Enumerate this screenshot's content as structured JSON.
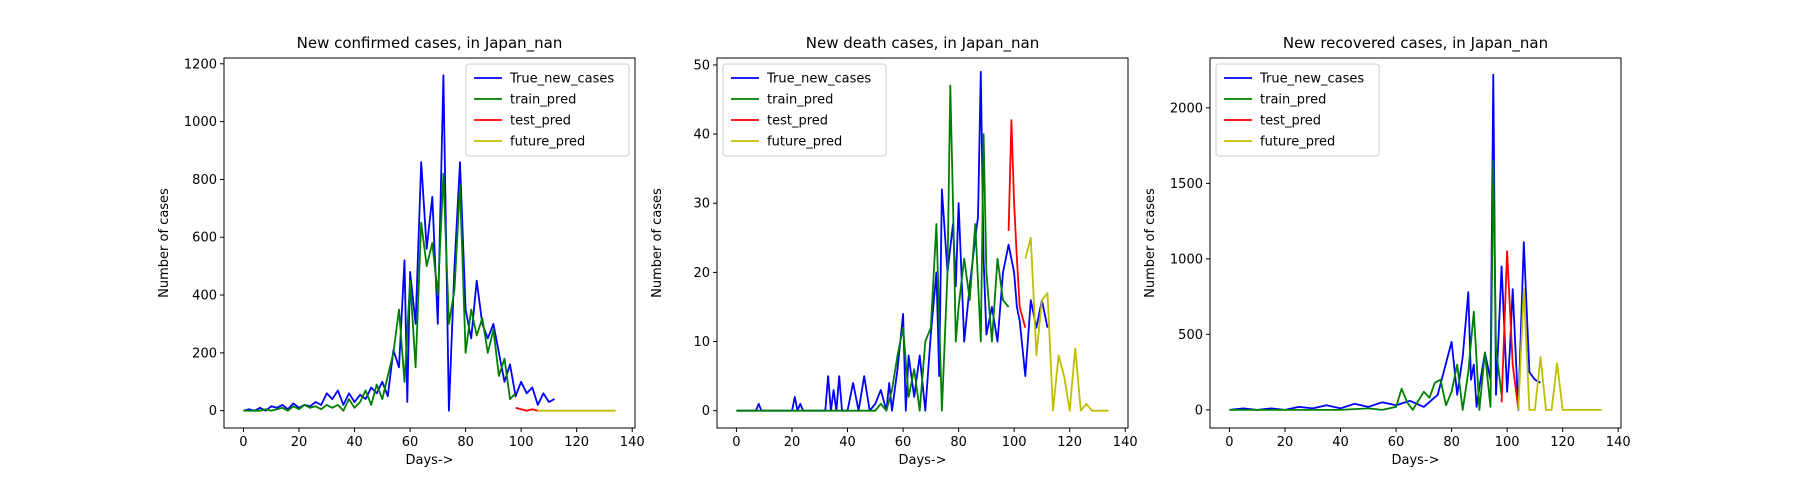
{
  "colors": {
    "True_new_cases": "#0000ff",
    "train_pred": "#008000",
    "test_pred": "#ff0000",
    "future_pred": "#bfbf00"
  },
  "chart_data": [
    {
      "type": "line",
      "title": "New confirmed cases, in Japan_nan",
      "xlabel": "Days->",
      "ylabel": "Number of cases",
      "xlim": [
        -7,
        141
      ],
      "ylim": [
        -60,
        1220
      ],
      "xticks": [
        0,
        20,
        40,
        60,
        80,
        100,
        120,
        140
      ],
      "yticks": [
        0,
        200,
        400,
        600,
        800,
        1000,
        1200
      ],
      "legend": "top-right",
      "grid": false,
      "series": [
        {
          "name": "True_new_cases",
          "x": [
            0,
            2,
            4,
            6,
            8,
            10,
            12,
            14,
            16,
            18,
            20,
            22,
            24,
            26,
            28,
            30,
            32,
            34,
            36,
            38,
            40,
            42,
            44,
            46,
            48,
            50,
            52,
            54,
            56,
            58,
            59,
            60,
            62,
            64,
            66,
            68,
            70,
            72,
            74,
            76,
            78,
            80,
            82,
            84,
            86,
            88,
            90,
            92,
            94,
            96,
            98,
            100,
            102,
            104,
            106,
            108,
            110,
            112
          ],
          "y": [
            0,
            5,
            0,
            10,
            0,
            15,
            10,
            20,
            5,
            25,
            10,
            20,
            15,
            30,
            20,
            60,
            40,
            70,
            20,
            60,
            30,
            55,
            40,
            80,
            60,
            100,
            50,
            210,
            150,
            520,
            30,
            480,
            300,
            860,
            560,
            740,
            300,
            1160,
            0,
            500,
            860,
            350,
            250,
            450,
            300,
            250,
            300,
            200,
            100,
            160,
            50,
            100,
            60,
            80,
            20,
            60,
            30,
            40
          ]
        },
        {
          "name": "train_pred",
          "x": [
            0,
            2,
            4,
            6,
            8,
            10,
            12,
            14,
            16,
            18,
            20,
            22,
            24,
            26,
            28,
            30,
            32,
            34,
            36,
            38,
            40,
            42,
            44,
            46,
            48,
            50,
            52,
            54,
            56,
            58,
            60,
            62,
            64,
            66,
            68,
            70,
            72,
            74,
            76,
            78,
            80,
            82,
            84,
            86,
            88,
            90,
            92,
            94,
            96,
            98
          ],
          "y": [
            0,
            0,
            0,
            0,
            5,
            0,
            5,
            10,
            0,
            15,
            5,
            20,
            10,
            15,
            5,
            20,
            10,
            20,
            0,
            40,
            10,
            30,
            70,
            20,
            90,
            40,
            120,
            200,
            350,
            100,
            450,
            150,
            650,
            500,
            580,
            400,
            820,
            300,
            420,
            780,
            200,
            350,
            260,
            320,
            200,
            280,
            120,
            180,
            40,
            60
          ]
        },
        {
          "name": "test_pred",
          "x": [
            98,
            100,
            102,
            104,
            106
          ],
          "y": [
            10,
            5,
            0,
            5,
            0
          ]
        },
        {
          "name": "future_pred",
          "x": [
            106,
            110,
            115,
            120,
            125,
            130,
            134
          ],
          "y": [
            0,
            0,
            0,
            0,
            0,
            0,
            0
          ]
        }
      ]
    },
    {
      "type": "line",
      "title": "New death cases, in Japan_nan",
      "xlabel": "Days->",
      "ylabel": "Number of cases",
      "xlim": [
        -7,
        141
      ],
      "ylim": [
        -2.5,
        51
      ],
      "xticks": [
        0,
        20,
        40,
        60,
        80,
        100,
        120,
        140
      ],
      "yticks": [
        0,
        10,
        20,
        30,
        40,
        50
      ],
      "legend": "top-left",
      "grid": false,
      "series": [
        {
          "name": "True_new_cases",
          "x": [
            0,
            5,
            7,
            8,
            9,
            15,
            20,
            21,
            22,
            23,
            24,
            30,
            32,
            33,
            34,
            35,
            36,
            37,
            38,
            40,
            42,
            44,
            46,
            48,
            50,
            52,
            54,
            55,
            56,
            58,
            60,
            61,
            62,
            64,
            66,
            68,
            70,
            72,
            73,
            74,
            76,
            78,
            79,
            80,
            82,
            84,
            86,
            87,
            88,
            89,
            90,
            92,
            94,
            96,
            98,
            100,
            101,
            102,
            104,
            106,
            108,
            110,
            112
          ],
          "y": [
            0,
            0,
            0,
            1,
            0,
            0,
            0,
            2,
            0,
            1,
            0,
            0,
            0,
            5,
            0,
            3,
            0,
            5,
            0,
            0,
            4,
            0,
            5,
            0,
            1,
            3,
            0,
            4,
            0,
            6,
            14,
            0,
            8,
            2,
            8,
            0,
            11,
            20,
            5,
            32,
            20,
            27,
            18,
            30,
            10,
            18,
            25,
            28,
            49,
            22,
            11,
            15,
            10,
            20,
            24,
            20,
            15,
            13,
            5,
            16,
            12,
            16,
            12
          ]
        },
        {
          "name": "train_pred",
          "x": [
            0,
            20,
            40,
            50,
            52,
            54,
            56,
            58,
            60,
            62,
            64,
            66,
            68,
            70,
            72,
            74,
            76,
            77,
            78,
            79,
            80,
            82,
            84,
            86,
            88,
            89,
            90,
            92,
            94,
            96,
            98
          ],
          "y": [
            0,
            0,
            0,
            0,
            1,
            0,
            3,
            8,
            12,
            2,
            6,
            0,
            10,
            12,
            27,
            0,
            20,
            47,
            30,
            10,
            15,
            22,
            16,
            27,
            10,
            40,
            20,
            10,
            22,
            16,
            15
          ]
        },
        {
          "name": "test_pred",
          "x": [
            98,
            99,
            100,
            101,
            102,
            104
          ],
          "y": [
            26,
            42,
            30,
            22,
            15,
            12
          ]
        },
        {
          "name": "future_pred",
          "x": [
            104,
            106,
            108,
            110,
            112,
            114,
            116,
            118,
            120,
            122,
            124,
            126,
            128,
            130,
            134
          ],
          "y": [
            22,
            25,
            8,
            16,
            17,
            0,
            8,
            5,
            0,
            9,
            0,
            1,
            0,
            0,
            0
          ]
        }
      ]
    },
    {
      "type": "line",
      "title": "New recovered cases, in Japan_nan",
      "xlabel": "Days->",
      "ylabel": "Number of cases",
      "xlim": [
        -7,
        141
      ],
      "ylim": [
        -120,
        2330
      ],
      "xticks": [
        0,
        20,
        40,
        60,
        80,
        100,
        120,
        140
      ],
      "yticks": [
        0,
        500,
        1000,
        1500,
        2000
      ],
      "legend": "top-left",
      "grid": false,
      "series": [
        {
          "name": "True_new_cases",
          "x": [
            0,
            5,
            10,
            15,
            20,
            25,
            30,
            35,
            40,
            45,
            50,
            55,
            60,
            65,
            70,
            75,
            80,
            82,
            84,
            86,
            87,
            88,
            89,
            90,
            92,
            94,
            95,
            96,
            98,
            100,
            101,
            102,
            104,
            106,
            108,
            110,
            112
          ],
          "y": [
            0,
            10,
            0,
            10,
            0,
            20,
            10,
            30,
            10,
            40,
            20,
            50,
            30,
            60,
            20,
            100,
            450,
            100,
            350,
            780,
            200,
            300,
            20,
            150,
            380,
            200,
            2220,
            100,
            950,
            120,
            400,
            800,
            0,
            1110,
            250,
            200,
            180
          ]
        },
        {
          "name": "train_pred",
          "x": [
            0,
            20,
            40,
            50,
            55,
            60,
            62,
            64,
            66,
            68,
            70,
            72,
            74,
            76,
            78,
            80,
            82,
            84,
            86,
            88,
            90,
            92,
            94,
            95,
            96,
            98
          ],
          "y": [
            0,
            0,
            0,
            10,
            0,
            20,
            140,
            50,
            0,
            60,
            120,
            80,
            180,
            200,
            30,
            120,
            300,
            0,
            250,
            650,
            0,
            380,
            20,
            1650,
            400,
            100
          ]
        },
        {
          "name": "test_pred",
          "x": [
            98,
            100,
            102,
            104
          ],
          "y": [
            50,
            1050,
            300,
            10
          ]
        },
        {
          "name": "future_pred",
          "x": [
            104,
            106,
            108,
            110,
            112,
            114,
            116,
            118,
            120,
            125,
            130,
            134
          ],
          "y": [
            0,
            800,
            0,
            0,
            350,
            0,
            0,
            310,
            0,
            0,
            0,
            0
          ]
        }
      ]
    }
  ]
}
